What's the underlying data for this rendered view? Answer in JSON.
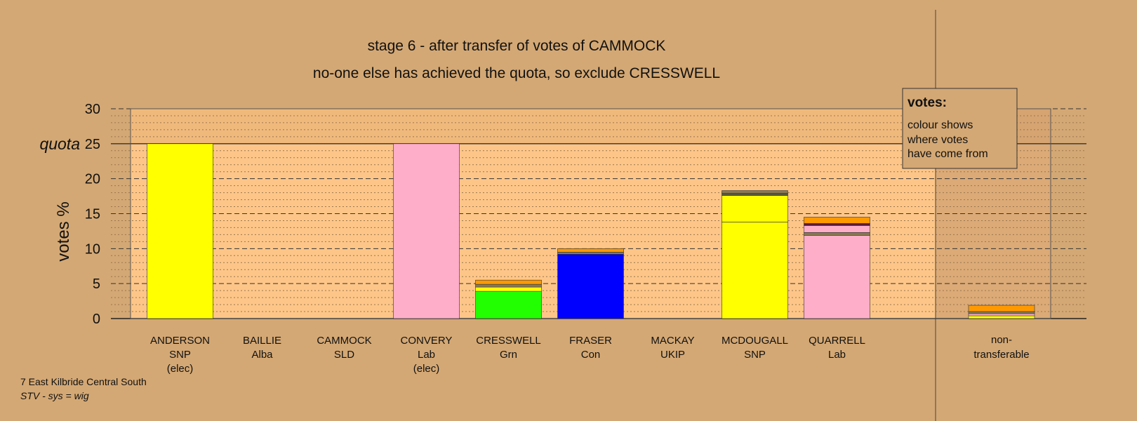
{
  "chart_data": {
    "type": "bar",
    "title": "stage 6 - after transfer of votes of CAMMOCK",
    "subtitle": "no-one else has achieved the quota, so exclude CRESSWELL",
    "ylabel": "votes %",
    "ylim": [
      0,
      30
    ],
    "yticks": [
      0,
      5,
      10,
      15,
      20,
      25,
      30
    ],
    "quota": {
      "label": "quota",
      "value": 25
    },
    "grid": true,
    "categories": [
      {
        "name": "ANDERSON",
        "party": "SNP",
        "note": "(elec)"
      },
      {
        "name": "BAILLIE",
        "party": "Alba",
        "note": ""
      },
      {
        "name": "CAMMOCK",
        "party": "SLD",
        "note": ""
      },
      {
        "name": "CONVERY",
        "party": "Lab",
        "note": "(elec)"
      },
      {
        "name": "CRESSWELL",
        "party": "Grn",
        "note": ""
      },
      {
        "name": "FRASER",
        "party": "Con",
        "note": ""
      },
      {
        "name": "MACKAY",
        "party": "UKIP",
        "note": ""
      },
      {
        "name": "MCDOUGALL",
        "party": "SNP",
        "note": ""
      },
      {
        "name": "QUARRELL",
        "party": "Lab",
        "note": ""
      }
    ],
    "nontransferable_label": [
      "non-",
      "transferable"
    ],
    "bars": [
      {
        "segments": [
          {
            "value": 25.0,
            "color": "#ffff00"
          }
        ]
      },
      {
        "segments": []
      },
      {
        "segments": []
      },
      {
        "segments": [
          {
            "value": 25.0,
            "color": "#ffaec9"
          }
        ]
      },
      {
        "segments": [
          {
            "value": 3.9,
            "color": "#22ff00"
          },
          {
            "value": 0.6,
            "color": "#ffff00"
          },
          {
            "value": 0.4,
            "color": "#8a7a50"
          },
          {
            "value": 0.6,
            "color": "#ff9900"
          }
        ]
      },
      {
        "segments": [
          {
            "value": 9.2,
            "color": "#0000ff"
          },
          {
            "value": 0.3,
            "color": "#8a7a50"
          },
          {
            "value": 0.5,
            "color": "#ff9900"
          }
        ]
      },
      {
        "segments": []
      },
      {
        "segments": [
          {
            "value": 13.8,
            "color": "#ffff00"
          },
          {
            "value": 3.8,
            "color": "#ffff00"
          },
          {
            "value": 0.3,
            "color": "#5a5a3c"
          },
          {
            "value": 0.4,
            "color": "#8a7a50"
          }
        ]
      },
      {
        "segments": [
          {
            "value": 11.9,
            "color": "#ffaec9"
          },
          {
            "value": 0.4,
            "color": "#8a7a50"
          },
          {
            "value": 1.0,
            "color": "#ffaec9"
          },
          {
            "value": 0.3,
            "color": "#5a1a3a"
          },
          {
            "value": 0.9,
            "color": "#ff9900"
          }
        ]
      }
    ],
    "nontransferable": {
      "segments": [
        {
          "value": 0.4,
          "color": "#ffff00"
        },
        {
          "value": 0.3,
          "color": "#ffaec9"
        },
        {
          "value": 0.3,
          "color": "#8a7a50"
        },
        {
          "value": 0.9,
          "color": "#ff9900"
        }
      ]
    },
    "legend": {
      "title": "votes:",
      "lines": [
        "colour shows",
        "where votes",
        "have come from"
      ],
      "position": "top-right"
    }
  },
  "footer": {
    "line1": "7 East Kilbride Central South",
    "line2": "STV - sys = wig"
  },
  "colors": {
    "background": "#d4a874",
    "plot_background": "#fdc688",
    "quota_band": "#f0b97c",
    "nontransferable_band": "#c09468",
    "text": "#111111"
  }
}
